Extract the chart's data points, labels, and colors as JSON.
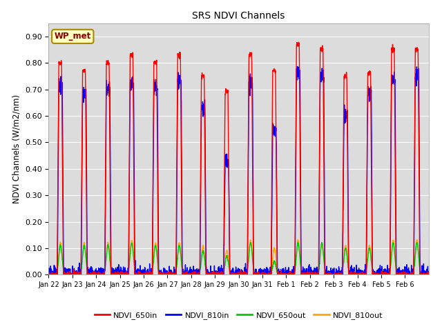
{
  "title": "SRS NDVI Channels",
  "ylabel": "NDVI Channels (W/m2/nm)",
  "ylim": [
    0.0,
    0.95
  ],
  "yticks": [
    0.0,
    0.1,
    0.2,
    0.3,
    0.4,
    0.5,
    0.6,
    0.7,
    0.8,
    0.9
  ],
  "colors": {
    "NDVI_650in": "#FF0000",
    "NDVI_810in": "#0000FF",
    "NDVI_650out": "#00CC00",
    "NDVI_810out": "#FFA500"
  },
  "annotation_text": "WP_met",
  "annotation_color": "#8B0000",
  "annotation_bg": "#FFFFC0",
  "bg_color": "#DCDCDC",
  "grid_color": "#FFFFFF",
  "n_days": 16,
  "peaks_650in": [
    0.8,
    0.77,
    0.8,
    0.83,
    0.8,
    0.83,
    0.75,
    0.69,
    0.83,
    0.77,
    0.87,
    0.85,
    0.75,
    0.76,
    0.85,
    0.85
  ],
  "peaks_810in": [
    0.71,
    0.68,
    0.7,
    0.72,
    0.71,
    0.73,
    0.63,
    0.43,
    0.73,
    0.54,
    0.76,
    0.75,
    0.6,
    0.68,
    0.74,
    0.75
  ],
  "peaks_650out": [
    0.11,
    0.11,
    0.11,
    0.12,
    0.11,
    0.11,
    0.09,
    0.07,
    0.12,
    0.05,
    0.12,
    0.12,
    0.1,
    0.1,
    0.12,
    0.12
  ],
  "peaks_810out": [
    0.12,
    0.12,
    0.12,
    0.13,
    0.12,
    0.12,
    0.11,
    0.09,
    0.13,
    0.1,
    0.13,
    0.12,
    0.11,
    0.11,
    0.13,
    0.13
  ],
  "x_labels": [
    "Jan 22",
    "Jan 23",
    "Jan 24",
    "Jan 25",
    "Jan 26",
    "Jan 27",
    "Jan 28",
    "Jan 29",
    "Jan 30",
    "Jan 31",
    "Feb 1",
    "Feb 2",
    "Feb 3",
    "Feb 4",
    "Feb 5",
    "Feb 6"
  ]
}
